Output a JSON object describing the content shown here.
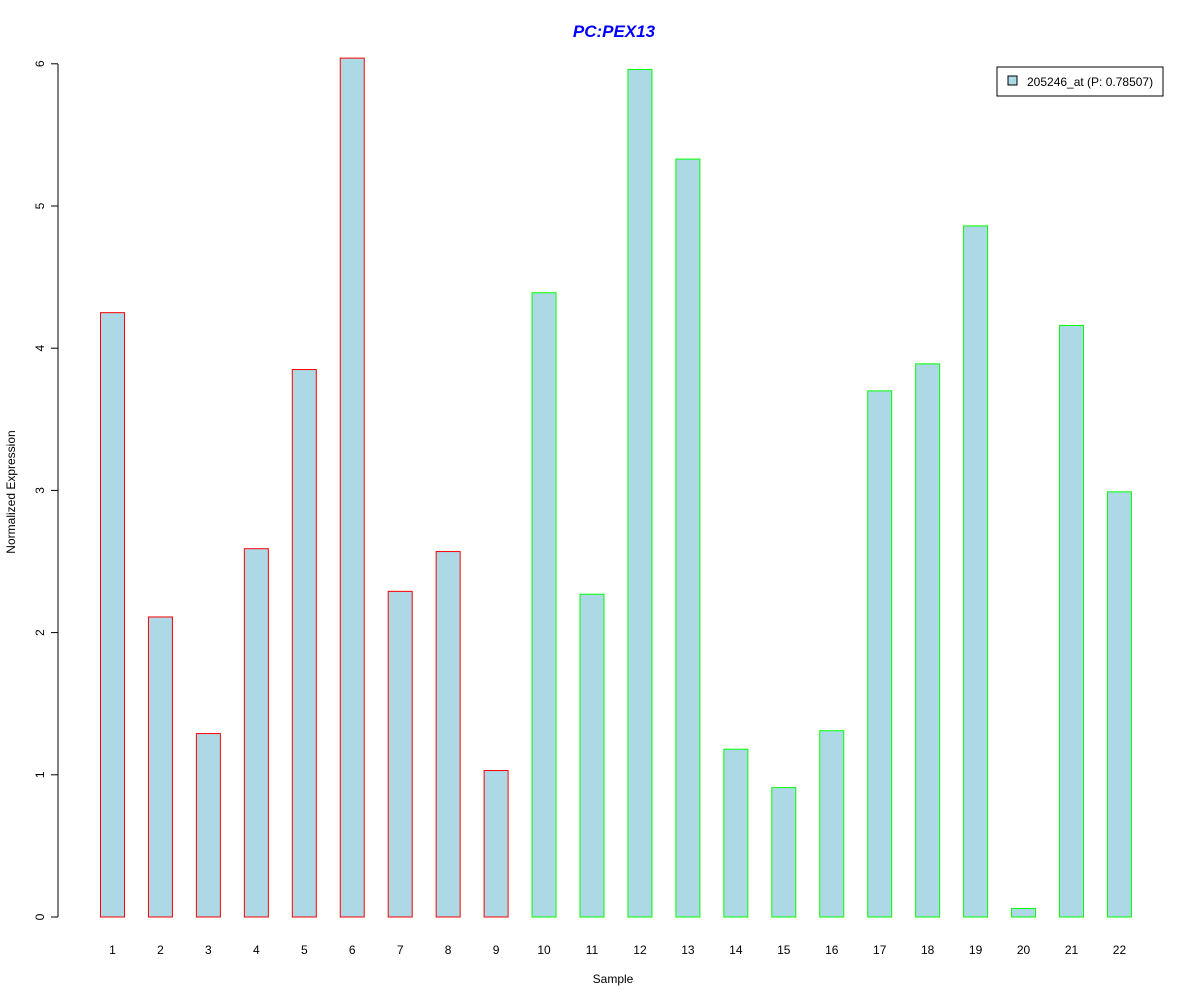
{
  "chart_data": {
    "type": "bar",
    "title": "PC:PEX13",
    "xlabel": "Sample",
    "ylabel": "Normalized Expression",
    "categories": [
      "1",
      "2",
      "3",
      "4",
      "5",
      "6",
      "7",
      "8",
      "9",
      "10",
      "11",
      "12",
      "13",
      "14",
      "15",
      "16",
      "17",
      "18",
      "19",
      "20",
      "21",
      "22"
    ],
    "series": [
      {
        "name": "205246_at (P: 0.78507)",
        "values": [
          4.25,
          2.11,
          1.29,
          2.59,
          3.85,
          6.04,
          2.29,
          2.57,
          1.03,
          4.39,
          2.27,
          5.96,
          5.33,
          1.18,
          0.91,
          1.31,
          3.7,
          3.89,
          4.86,
          0.06,
          4.16,
          2.99
        ],
        "fill_color": "#add8e6",
        "border_colors": [
          "#ff0000",
          "#ff0000",
          "#ff0000",
          "#ff0000",
          "#ff0000",
          "#ff0000",
          "#ff0000",
          "#ff0000",
          "#ff0000",
          "#00ff00",
          "#00ff00",
          "#00ff00",
          "#00ff00",
          "#00ff00",
          "#00ff00",
          "#00ff00",
          "#00ff00",
          "#00ff00",
          "#00ff00",
          "#00ff00",
          "#00ff00",
          "#00ff00"
        ]
      }
    ],
    "yticks": [
      "0",
      "1",
      "2",
      "3",
      "4",
      "5",
      "6"
    ],
    "ylim": [
      0,
      6
    ],
    "grid": false,
    "legend_position": "top-right",
    "title_color": "#0000ff",
    "legend_swatch_color": "#add8e6"
  }
}
